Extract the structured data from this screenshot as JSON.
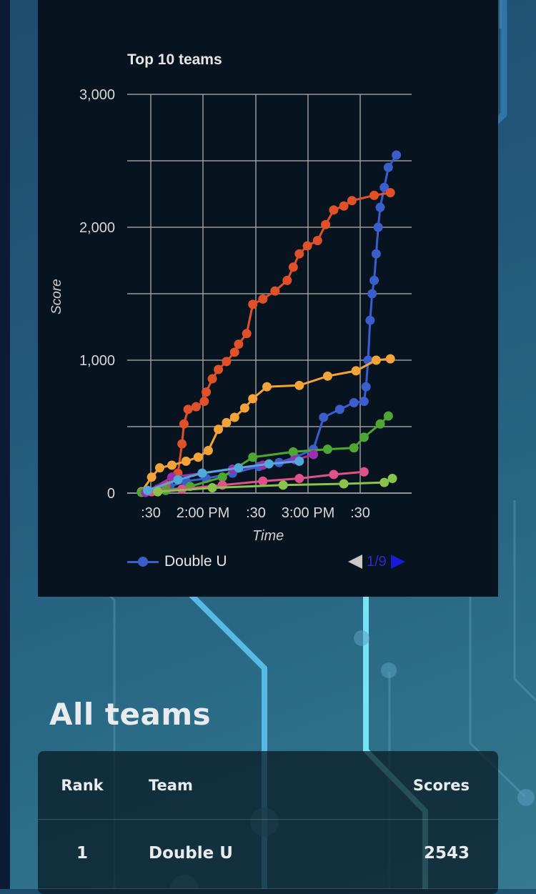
{
  "chart_data": {
    "type": "line",
    "title": "Top 10 teams",
    "xlabel": "Time",
    "ylabel": "Score",
    "ylim": [
      0,
      3000
    ],
    "y_ticks": [
      "0",
      "1,000",
      "2,000",
      "3,000"
    ],
    "x_ticks": [
      ":30",
      "2:00 PM",
      ":30",
      "3:00 PM",
      ":30"
    ],
    "x_unit": "minutes after 1:00 PM",
    "xlim": [
      0,
      130
    ],
    "series": [
      {
        "name": "Double U",
        "color": "#3a5fcd",
        "points": [
          [
            0,
            10
          ],
          [
            8,
            30
          ],
          [
            14,
            50
          ],
          [
            22,
            90
          ],
          [
            32,
            110
          ],
          [
            45,
            150
          ],
          [
            58,
            200
          ],
          [
            68,
            230
          ],
          [
            76,
            270
          ],
          [
            85,
            330
          ],
          [
            90,
            570
          ],
          [
            98,
            630
          ],
          [
            105,
            680
          ],
          [
            110,
            690
          ],
          [
            111,
            800
          ],
          [
            112,
            1000
          ],
          [
            113,
            1300
          ],
          [
            114,
            1500
          ],
          [
            115,
            1600
          ],
          [
            116,
            1800
          ],
          [
            117,
            2000
          ],
          [
            118,
            2150
          ],
          [
            120,
            2300
          ],
          [
            122,
            2450
          ],
          [
            126,
            2543
          ]
        ]
      },
      {
        "name": "",
        "color": "#e0512a",
        "points": [
          [
            2,
            10
          ],
          [
            12,
            60
          ],
          [
            18,
            150
          ],
          [
            20,
            370
          ],
          [
            21,
            520
          ],
          [
            23,
            630
          ],
          [
            27,
            650
          ],
          [
            31,
            690
          ],
          [
            32,
            760
          ],
          [
            35,
            860
          ],
          [
            38,
            930
          ],
          [
            42,
            990
          ],
          [
            46,
            1060
          ],
          [
            48,
            1120
          ],
          [
            52,
            1200
          ],
          [
            55,
            1420
          ],
          [
            60,
            1460
          ],
          [
            66,
            1520
          ],
          [
            72,
            1600
          ],
          [
            75,
            1700
          ],
          [
            78,
            1800
          ],
          [
            82,
            1860
          ],
          [
            87,
            1900
          ],
          [
            91,
            2020
          ],
          [
            95,
            2130
          ],
          [
            100,
            2160
          ],
          [
            104,
            2200
          ],
          [
            115,
            2240
          ],
          [
            123,
            2260
          ]
        ]
      },
      {
        "name": "",
        "color": "#f4a338",
        "points": [
          [
            0,
            10
          ],
          [
            5,
            120
          ],
          [
            9,
            190
          ],
          [
            15,
            210
          ],
          [
            22,
            240
          ],
          [
            28,
            270
          ],
          [
            33,
            320
          ],
          [
            38,
            480
          ],
          [
            42,
            530
          ],
          [
            46,
            570
          ],
          [
            51,
            640
          ],
          [
            55,
            710
          ],
          [
            62,
            800
          ],
          [
            78,
            810
          ],
          [
            92,
            880
          ],
          [
            106,
            920
          ],
          [
            116,
            1000
          ],
          [
            123,
            1010
          ]
        ]
      },
      {
        "name": "",
        "color": "#4ca832",
        "points": [
          [
            0,
            5
          ],
          [
            12,
            20
          ],
          [
            24,
            50
          ],
          [
            40,
            120
          ],
          [
            55,
            270
          ],
          [
            75,
            310
          ],
          [
            92,
            330
          ],
          [
            105,
            340
          ],
          [
            110,
            420
          ],
          [
            118,
            520
          ],
          [
            122,
            580
          ]
        ]
      },
      {
        "name": "",
        "color": "#9b2fae",
        "points": [
          [
            2,
            5
          ],
          [
            15,
            120
          ],
          [
            30,
            150
          ],
          [
            45,
            180
          ],
          [
            60,
            210
          ],
          [
            76,
            250
          ],
          [
            85,
            290
          ]
        ]
      },
      {
        "name": "",
        "color": "#e0508a",
        "points": [
          [
            5,
            10
          ],
          [
            20,
            30
          ],
          [
            40,
            60
          ],
          [
            60,
            90
          ],
          [
            78,
            110
          ],
          [
            95,
            140
          ],
          [
            110,
            160
          ]
        ]
      },
      {
        "name": "",
        "color": "#4fa9d9",
        "points": [
          [
            3,
            20
          ],
          [
            18,
            100
          ],
          [
            30,
            150
          ],
          [
            48,
            190
          ],
          [
            63,
            220
          ],
          [
            78,
            240
          ]
        ]
      },
      {
        "name": "",
        "color": "#8bc34a",
        "points": [
          [
            8,
            10
          ],
          [
            35,
            40
          ],
          [
            70,
            60
          ],
          [
            100,
            70
          ],
          [
            120,
            80
          ],
          [
            124,
            110
          ]
        ]
      }
    ]
  },
  "pager": {
    "text": "1/9"
  },
  "all_teams": {
    "title": "All teams",
    "headers": {
      "rank": "Rank",
      "team": "Team",
      "scores": "Scores"
    },
    "rows": [
      {
        "rank": "1",
        "team": "Double U",
        "score": "2543"
      }
    ]
  }
}
